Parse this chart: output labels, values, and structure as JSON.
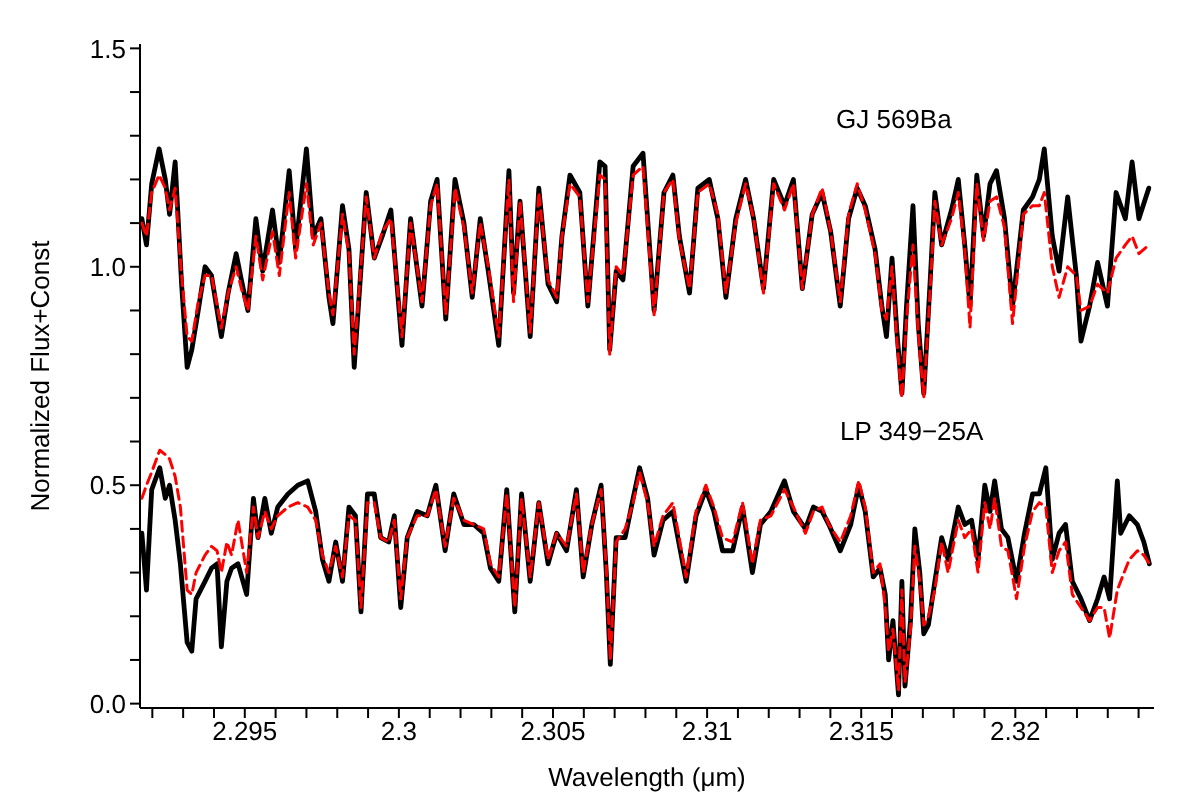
{
  "chart_data": {
    "type": "line",
    "xlabel": "Wavelength (μm)",
    "ylabel": "Normalized Flux+Const",
    "xlim": [
      2.2916,
      2.3245
    ],
    "ylim": [
      -0.01,
      1.51
    ],
    "xticks": [
      {
        "value": 2.292,
        "label": null
      },
      {
        "value": 2.293,
        "label": null
      },
      {
        "value": 2.294,
        "label": null
      },
      2.295,
      {
        "value": 2.296,
        "label": null
      },
      {
        "value": 2.297,
        "label": null
      },
      {
        "value": 2.298,
        "label": null
      },
      {
        "value": 2.299,
        "label": null
      },
      2.3,
      {
        "value": 2.301,
        "label": null
      },
      {
        "value": 2.302,
        "label": null
      },
      {
        "value": 2.303,
        "label": null
      },
      {
        "value": 2.304,
        "label": null
      },
      2.305,
      {
        "value": 2.306,
        "label": null
      },
      {
        "value": 2.307,
        "label": null
      },
      {
        "value": 2.308,
        "label": null
      },
      {
        "value": 2.309,
        "label": null
      },
      2.31,
      {
        "value": 2.311,
        "label": null
      },
      {
        "value": 2.312,
        "label": null
      },
      {
        "value": 2.313,
        "label": null
      },
      {
        "value": 2.314,
        "label": null
      },
      2.315,
      {
        "value": 2.316,
        "label": null
      },
      {
        "value": 2.317,
        "label": null
      },
      {
        "value": 2.318,
        "label": null
      },
      {
        "value": 2.319,
        "label": null
      },
      2.32,
      {
        "value": 2.321,
        "label": null
      },
      {
        "value": 2.322,
        "label": null
      },
      {
        "value": 2.323,
        "label": null
      },
      {
        "value": 2.324,
        "label": null
      }
    ],
    "yticks": [
      {
        "value": 0,
        "label": "0.0"
      },
      {
        "value": 0.1,
        "label": null
      },
      {
        "value": 0.2,
        "label": null
      },
      {
        "value": 0.3,
        "label": null
      },
      {
        "value": 0.4,
        "label": null
      },
      {
        "value": 0.5,
        "label": "0.5"
      },
      {
        "value": 0.6,
        "label": null
      },
      {
        "value": 0.7,
        "label": null
      },
      {
        "value": 0.8,
        "label": null
      },
      {
        "value": 0.9,
        "label": null
      },
      {
        "value": 1.0,
        "label": "1.0"
      },
      {
        "value": 1.1,
        "label": null
      },
      {
        "value": 1.2,
        "label": null
      },
      {
        "value": 1.3,
        "label": null
      },
      {
        "value": 1.4,
        "label": null
      },
      {
        "value": 1.5,
        "label": "1.5"
      }
    ],
    "grid": false,
    "legend": false,
    "marker": "none",
    "annotations": [
      "GJ 569Ba",
      "LP 349−25A"
    ],
    "series": [
      {
        "color": "#000000",
        "line_style": "solid",
        "x": [
          2.29166,
          2.29181,
          2.29198,
          2.29222,
          2.29242,
          2.29256,
          2.29274,
          2.29295,
          2.29313,
          2.29328,
          2.29349,
          2.29371,
          2.29392,
          2.29424,
          2.29446,
          2.29472,
          2.29489,
          2.2951,
          2.29536,
          2.29558,
          2.2959,
          2.29612,
          2.29644,
          2.29665,
          2.297,
          2.29722,
          2.29747,
          2.29773,
          2.29786,
          2.29817,
          2.29838,
          2.29855,
          2.29894,
          2.2992,
          2.29946,
          2.29974,
          2.3001,
          2.30038,
          2.30075,
          2.30103,
          2.30124,
          2.30152,
          2.30182,
          2.30211,
          2.30238,
          2.30264,
          2.3029,
          2.30324,
          2.30357,
          2.30372,
          2.30393,
          2.30426,
          2.30454,
          2.30484,
          2.30512,
          2.30529,
          2.30555,
          2.30587,
          2.30613,
          2.30652,
          2.30669,
          2.30684,
          2.30705,
          2.30727,
          2.3076,
          2.30792,
          2.30828,
          2.3086,
          2.30889,
          2.3091,
          2.30943,
          2.3097,
          2.31007,
          2.31035,
          2.31061,
          2.31093,
          2.31125,
          2.31151,
          2.31183,
          2.31216,
          2.31251,
          2.3128,
          2.31309,
          2.31341,
          2.31373,
          2.31401,
          2.31432,
          2.31459,
          2.31487,
          2.31513,
          2.31545,
          2.31567,
          2.31582,
          2.316,
          2.31616,
          2.31632,
          2.31647,
          2.31668,
          2.31685,
          2.31703,
          2.31724,
          2.31739,
          2.31761,
          2.31793,
          2.31815,
          2.31836,
          2.31853,
          2.31875,
          2.31897,
          2.31918,
          2.31939,
          2.31965,
          2.31991,
          2.32026,
          2.32056,
          2.32078,
          2.32094,
          2.3212,
          2.32142,
          2.3217,
          2.32198,
          2.32213,
          2.32241,
          2.32267,
          2.32299,
          2.32327,
          2.32357,
          2.32379,
          2.32401,
          2.32433
        ],
        "values": [
          1.11,
          1.05,
          1.19,
          1.27,
          1.2,
          1.12,
          1.24,
          0.96,
          0.77,
          0.81,
          0.9,
          1.0,
          0.98,
          0.84,
          0.94,
          1.03,
          0.97,
          0.9,
          1.11,
          0.99,
          1.13,
          1.01,
          1.22,
          1.04,
          1.27,
          1.07,
          1.11,
          0.93,
          0.87,
          1.14,
          1.04,
          0.77,
          1.17,
          1.02,
          1.07,
          1.13,
          0.82,
          1.11,
          0.91,
          1.15,
          1.2,
          0.88,
          1.2,
          1.1,
          0.93,
          1.11,
          0.99,
          0.82,
          1.22,
          0.94,
          1.15,
          0.84,
          1.18,
          0.96,
          0.92,
          1.07,
          1.21,
          1.17,
          0.91,
          1.24,
          1.23,
          0.81,
          0.99,
          0.97,
          1.23,
          1.26,
          0.9,
          1.17,
          1.21,
          1.07,
          0.94,
          1.18,
          1.2,
          1.11,
          0.93,
          1.11,
          1.2,
          1.11,
          0.95,
          1.2,
          1.14,
          1.2,
          0.95,
          1.12,
          1.17,
          1.08,
          0.91,
          1.11,
          1.18,
          1.14,
          1.04,
          0.91,
          0.84,
          1.02,
          0.85,
          0.71,
          0.91,
          1.14,
          0.87,
          0.71,
          0.97,
          1.17,
          1.05,
          1.13,
          1.2,
          1.05,
          0.91,
          1.21,
          1.07,
          1.19,
          1.22,
          1.11,
          0.91,
          1.13,
          1.16,
          1.2,
          1.27,
          1.07,
          0.99,
          1.16,
          0.98,
          0.83,
          0.91,
          1.01,
          0.91,
          1.17,
          1.11,
          1.24,
          1.11,
          1.18
        ]
      },
      {
        "color": "#ff0000",
        "line_style": "dashed",
        "x": [
          2.29166,
          2.29181,
          2.29198,
          2.29222,
          2.29242,
          2.29256,
          2.29274,
          2.29295,
          2.29313,
          2.29328,
          2.29349,
          2.29371,
          2.29392,
          2.29424,
          2.29446,
          2.29472,
          2.29489,
          2.2951,
          2.29536,
          2.29558,
          2.2959,
          2.29612,
          2.29644,
          2.29665,
          2.297,
          2.29722,
          2.29747,
          2.29773,
          2.29786,
          2.29817,
          2.29838,
          2.29855,
          2.29894,
          2.2992,
          2.29946,
          2.29974,
          2.3001,
          2.30038,
          2.30075,
          2.30103,
          2.30124,
          2.30152,
          2.30182,
          2.30211,
          2.30238,
          2.30264,
          2.3029,
          2.30324,
          2.30357,
          2.30372,
          2.30393,
          2.30426,
          2.30454,
          2.30484,
          2.30512,
          2.30529,
          2.30555,
          2.30587,
          2.30613,
          2.30652,
          2.30669,
          2.30684,
          2.30705,
          2.30727,
          2.3076,
          2.30792,
          2.30828,
          2.3086,
          2.30889,
          2.3091,
          2.30943,
          2.3097,
          2.31007,
          2.31035,
          2.31061,
          2.31093,
          2.31125,
          2.31151,
          2.31183,
          2.31216,
          2.31251,
          2.3128,
          2.31309,
          2.31341,
          2.31373,
          2.31401,
          2.31432,
          2.31459,
          2.31487,
          2.31513,
          2.31545,
          2.31567,
          2.31582,
          2.316,
          2.31616,
          2.31632,
          2.31647,
          2.31668,
          2.31685,
          2.31703,
          2.31724,
          2.31739,
          2.31761,
          2.31793,
          2.31815,
          2.31836,
          2.31853,
          2.31875,
          2.31897,
          2.31918,
          2.31939,
          2.31965,
          2.31991,
          2.32026,
          2.32056,
          2.32078,
          2.32094,
          2.3212,
          2.32142,
          2.3217,
          2.32198,
          2.32213,
          2.32241,
          2.32267,
          2.32299,
          2.32327,
          2.32357,
          2.32379,
          2.32401,
          2.32433
        ],
        "values": [
          1.1,
          1.07,
          1.17,
          1.21,
          1.18,
          1.13,
          1.18,
          0.98,
          0.84,
          0.83,
          0.92,
          0.98,
          0.98,
          0.86,
          0.94,
          1.0,
          0.95,
          0.9,
          1.07,
          0.97,
          1.08,
          0.98,
          1.17,
          1.02,
          1.19,
          1.05,
          1.1,
          0.94,
          0.89,
          1.12,
          1.03,
          0.8,
          1.16,
          1.02,
          1.08,
          1.11,
          0.84,
          1.1,
          0.92,
          1.14,
          1.19,
          0.89,
          1.18,
          1.09,
          0.94,
          1.1,
          1.0,
          0.84,
          1.2,
          0.92,
          1.15,
          0.85,
          1.17,
          0.97,
          0.93,
          1.07,
          1.19,
          1.16,
          0.92,
          1.21,
          1.2,
          0.8,
          1.0,
          0.98,
          1.21,
          1.23,
          0.89,
          1.17,
          1.2,
          1.06,
          0.95,
          1.17,
          1.19,
          1.12,
          0.94,
          1.1,
          1.19,
          1.11,
          0.94,
          1.19,
          1.13,
          1.19,
          0.95,
          1.12,
          1.18,
          1.08,
          0.92,
          1.12,
          1.19,
          1.13,
          1.03,
          0.9,
          0.88,
          1.0,
          0.83,
          0.7,
          0.88,
          1.05,
          0.85,
          0.7,
          0.95,
          1.15,
          1.05,
          1.11,
          1.17,
          1.04,
          0.86,
          1.19,
          1.06,
          1.15,
          1.16,
          1.09,
          0.87,
          1.12,
          1.14,
          1.14,
          1.17,
          1.0,
          0.93,
          1.0,
          0.98,
          0.9,
          0.91,
          0.96,
          0.94,
          1.02,
          1.05,
          1.07,
          1.03,
          1.05
        ]
      },
      {
        "color": "#000000",
        "line_style": "solid",
        "x": [
          2.29166,
          2.29181,
          2.29198,
          2.29224,
          2.29242,
          2.29256,
          2.29274,
          2.29291,
          2.29313,
          2.29328,
          2.29342,
          2.29371,
          2.29392,
          2.2941,
          2.29424,
          2.29442,
          2.29457,
          2.29478,
          2.29506,
          2.29528,
          2.29543,
          2.29565,
          2.29586,
          2.29607,
          2.2964,
          2.29672,
          2.29704,
          2.2973,
          2.29752,
          2.29773,
          2.29795,
          2.29817,
          2.29838,
          2.29859,
          2.29877,
          2.29898,
          2.2992,
          2.29941,
          2.29967,
          2.29985,
          2.30006,
          2.30027,
          2.30059,
          2.30092,
          2.3012,
          2.3015,
          2.30178,
          2.30211,
          2.30243,
          2.30275,
          2.30297,
          2.30324,
          2.3035,
          2.30376,
          2.30398,
          2.30426,
          2.30454,
          2.30484,
          2.30512,
          2.30544,
          2.30576,
          2.30598,
          2.30626,
          2.30656,
          2.30673,
          2.30686,
          2.30705,
          2.30734,
          2.3076,
          2.30781,
          2.30807,
          2.30828,
          2.30857,
          2.30889,
          2.30932,
          2.30964,
          2.30996,
          2.31022,
          2.3105,
          2.31083,
          2.31115,
          2.31147,
          2.31173,
          2.31207,
          2.31251,
          2.3128,
          2.31319,
          2.31345,
          2.31373,
          2.31395,
          2.31432,
          2.31466,
          2.31492,
          2.31513,
          2.31539,
          2.31561,
          2.31578,
          2.31589,
          2.31603,
          2.31621,
          2.31632,
          2.31642,
          2.3166,
          2.31674,
          2.3169,
          2.31703,
          2.31718,
          2.31739,
          2.31761,
          2.31782,
          2.31815,
          2.31836,
          2.31858,
          2.31879,
          2.31901,
          2.31918,
          2.31933,
          2.31955,
          2.31976,
          2.32004,
          2.3203,
          2.32056,
          2.32078,
          2.32099,
          2.3212,
          2.32142,
          2.32163,
          2.32185,
          2.32213,
          2.32241,
          2.32267,
          2.32288,
          2.32306,
          2.32331,
          2.32342,
          2.3237,
          2.32396,
          2.32417,
          2.32435
        ],
        "values": [
          0.39,
          0.26,
          0.49,
          0.54,
          0.47,
          0.5,
          0.42,
          0.32,
          0.14,
          0.12,
          0.24,
          0.28,
          0.31,
          0.32,
          0.13,
          0.28,
          0.31,
          0.32,
          0.25,
          0.47,
          0.38,
          0.47,
          0.39,
          0.45,
          0.48,
          0.5,
          0.51,
          0.44,
          0.33,
          0.28,
          0.37,
          0.28,
          0.45,
          0.43,
          0.21,
          0.48,
          0.48,
          0.38,
          0.37,
          0.43,
          0.22,
          0.38,
          0.44,
          0.43,
          0.5,
          0.35,
          0.48,
          0.41,
          0.41,
          0.39,
          0.31,
          0.28,
          0.49,
          0.21,
          0.48,
          0.28,
          0.46,
          0.32,
          0.39,
          0.35,
          0.49,
          0.29,
          0.41,
          0.5,
          0.3,
          0.09,
          0.38,
          0.38,
          0.47,
          0.54,
          0.47,
          0.34,
          0.42,
          0.44,
          0.28,
          0.43,
          0.49,
          0.44,
          0.35,
          0.35,
          0.45,
          0.3,
          0.41,
          0.44,
          0.51,
          0.44,
          0.4,
          0.45,
          0.44,
          0.41,
          0.35,
          0.41,
          0.5,
          0.44,
          0.29,
          0.31,
          0.25,
          0.1,
          0.19,
          0.02,
          0.28,
          0.04,
          0.19,
          0.4,
          0.3,
          0.16,
          0.18,
          0.28,
          0.38,
          0.33,
          0.45,
          0.41,
          0.42,
          0.33,
          0.5,
          0.44,
          0.51,
          0.4,
          0.38,
          0.28,
          0.39,
          0.48,
          0.48,
          0.54,
          0.33,
          0.39,
          0.41,
          0.28,
          0.24,
          0.19,
          0.24,
          0.29,
          0.24,
          0.51,
          0.39,
          0.43,
          0.41,
          0.37,
          0.32
        ]
      },
      {
        "color": "#ff0000",
        "line_style": "dashed",
        "x": [
          2.29166,
          2.29181,
          2.29198,
          2.29224,
          2.29242,
          2.29256,
          2.29274,
          2.29291,
          2.29313,
          2.29328,
          2.29342,
          2.29371,
          2.29392,
          2.2941,
          2.29424,
          2.29442,
          2.29457,
          2.29478,
          2.29506,
          2.29528,
          2.29543,
          2.29565,
          2.29586,
          2.29607,
          2.2964,
          2.29672,
          2.29704,
          2.2973,
          2.29752,
          2.29773,
          2.29795,
          2.29817,
          2.29838,
          2.29859,
          2.29877,
          2.29898,
          2.2992,
          2.29941,
          2.29967,
          2.29985,
          2.30006,
          2.30027,
          2.30059,
          2.30092,
          2.3012,
          2.3015,
          2.30178,
          2.30211,
          2.30243,
          2.30275,
          2.30297,
          2.30324,
          2.3035,
          2.30376,
          2.30398,
          2.30426,
          2.30454,
          2.30484,
          2.30512,
          2.30544,
          2.30576,
          2.30598,
          2.30626,
          2.30656,
          2.30673,
          2.30686,
          2.30705,
          2.30734,
          2.3076,
          2.30781,
          2.30807,
          2.30828,
          2.30857,
          2.30889,
          2.30932,
          2.30964,
          2.30996,
          2.31022,
          2.3105,
          2.31083,
          2.31115,
          2.31147,
          2.31173,
          2.31207,
          2.31251,
          2.3128,
          2.31319,
          2.31345,
          2.31373,
          2.31395,
          2.31432,
          2.31466,
          2.31492,
          2.31513,
          2.31539,
          2.31561,
          2.31578,
          2.31589,
          2.31603,
          2.31621,
          2.31632,
          2.31642,
          2.3166,
          2.31674,
          2.3169,
          2.31703,
          2.31718,
          2.31739,
          2.31761,
          2.31782,
          2.31815,
          2.31836,
          2.31858,
          2.31879,
          2.31901,
          2.31918,
          2.31933,
          2.31955,
          2.31976,
          2.32004,
          2.3203,
          2.32056,
          2.32078,
          2.32099,
          2.3212,
          2.32142,
          2.32163,
          2.32185,
          2.32213,
          2.32241,
          2.32267,
          2.32288,
          2.32306,
          2.32331,
          2.32342,
          2.3237,
          2.32396,
          2.32417,
          2.32435
        ],
        "values": [
          0.47,
          0.5,
          0.53,
          0.58,
          0.57,
          0.56,
          0.52,
          0.45,
          0.26,
          0.25,
          0.3,
          0.34,
          0.36,
          0.35,
          0.3,
          0.37,
          0.34,
          0.42,
          0.3,
          0.45,
          0.38,
          0.44,
          0.4,
          0.43,
          0.45,
          0.46,
          0.45,
          0.42,
          0.34,
          0.3,
          0.36,
          0.29,
          0.43,
          0.42,
          0.22,
          0.46,
          0.46,
          0.38,
          0.37,
          0.42,
          0.24,
          0.38,
          0.43,
          0.43,
          0.49,
          0.36,
          0.47,
          0.42,
          0.41,
          0.4,
          0.32,
          0.29,
          0.48,
          0.22,
          0.47,
          0.29,
          0.46,
          0.33,
          0.39,
          0.36,
          0.48,
          0.3,
          0.41,
          0.49,
          0.31,
          0.1,
          0.37,
          0.4,
          0.46,
          0.53,
          0.46,
          0.36,
          0.43,
          0.46,
          0.29,
          0.44,
          0.5,
          0.45,
          0.38,
          0.37,
          0.46,
          0.32,
          0.42,
          0.43,
          0.49,
          0.45,
          0.39,
          0.44,
          0.45,
          0.41,
          0.37,
          0.43,
          0.51,
          0.45,
          0.3,
          0.32,
          0.22,
          0.12,
          0.17,
          0.03,
          0.26,
          0.05,
          0.17,
          0.36,
          0.28,
          0.18,
          0.2,
          0.26,
          0.37,
          0.3,
          0.42,
          0.38,
          0.4,
          0.3,
          0.46,
          0.4,
          0.47,
          0.36,
          0.35,
          0.24,
          0.36,
          0.44,
          0.46,
          0.45,
          0.3,
          0.35,
          0.37,
          0.25,
          0.22,
          0.19,
          0.22,
          0.22,
          0.15,
          0.26,
          0.28,
          0.33,
          0.35,
          0.34,
          0.32
        ]
      }
    ]
  }
}
